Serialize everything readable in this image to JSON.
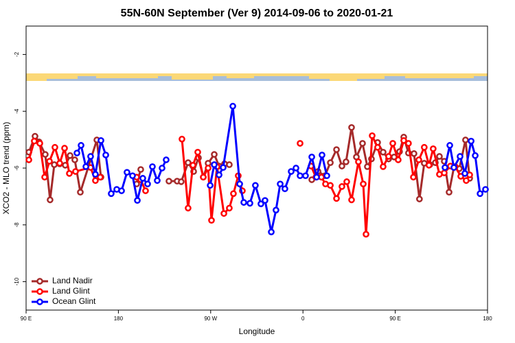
{
  "chart_data": {
    "type": "line",
    "title": "55N-60N September (Ver 9)   2014-09-06 to 2020-01-21",
    "xlabel": "Longitude",
    "ylabel": "XCO2 - MLO trend (ppm)",
    "xlim": [
      90,
      540
    ],
    "ylim": [
      -11,
      -1
    ],
    "xticks": [
      {
        "value": 90,
        "label": "90 E"
      },
      180,
      {
        "value": 270,
        "label": "90 W"
      },
      {
        "value": 360,
        "label": "0"
      },
      {
        "value": 450,
        "label": "90 E"
      },
      {
        "value": 540,
        "label": "180"
      }
    ],
    "yticks": [
      -2,
      -4,
      -6,
      -8,
      -10
    ],
    "legend": "bottom-left",
    "series": [
      {
        "name": "Land Nadir",
        "color": "#a52a2a",
        "x": [
          92.7,
          98.7,
          102.7,
          108.7,
          113.4,
          117.5,
          122.8,
          128.2,
          132.9,
          137.5,
          142.9,
          159.0,
          163.0,
          null,
          197.8,
          201.8,
          null,
          229.3,
          237.3,
          241.3,
          248.0,
          253.4,
          258.1,
          262.8,
          267.5,
          273.5,
          278.2,
          283.5,
          288.2,
          null,
          368.6,
          374.7,
          381.4,
          386.7,
          392.7,
          398.0,
          402.0,
          407.4,
          412.1,
          418.1,
          422.8,
          426.8,
          432.8,
          438.2,
          443.5,
          448.9,
          454.2,
          458.3,
          462.9,
          468.3,
          473.6,
          478.3,
          483.7,
          489.1,
          493.1,
          497.8,
          502.5,
          507.2,
          512.5,
          518.5,
          522.6
        ],
        "values": [
          -5.44,
          -4.88,
          -5.08,
          -5.52,
          -7.12,
          -5.88,
          -5.85,
          -5.9,
          -5.56,
          -5.71,
          -6.85,
          -5.01,
          -6.32,
          null,
          -6.56,
          -6.05,
          null,
          -6.46,
          -6.46,
          -6.48,
          -5.81,
          -6.12,
          -5.64,
          -6.32,
          -5.83,
          -5.52,
          -5.93,
          -5.85,
          -5.88,
          null,
          -6.41,
          -6.12,
          -6.27,
          -5.81,
          -5.35,
          -5.93,
          -5.78,
          -4.57,
          -5.61,
          -5.13,
          -5.95,
          -5.68,
          -5.1,
          -5.44,
          -5.68,
          -5.61,
          -5.42,
          -4.91,
          -5.47,
          -5.49,
          -7.09,
          -5.83,
          -5.88,
          -5.81,
          -5.59,
          -5.76,
          -6.85,
          -5.98,
          -6.02,
          -5.01,
          -6.36
        ]
      },
      {
        "name": "Land Glint",
        "color": "#ff0000",
        "x": [
          92.7,
          98.0,
          103.4,
          108.1,
          112.8,
          118.1,
          122.8,
          127.5,
          132.2,
          138.2,
          152.9,
          157.6,
          162.3,
          null,
          197.8,
          201.8,
          206.5,
          null,
          242.0,
          248.0,
          252.7,
          257.4,
          262.8,
          267.5,
          270.8,
          276.2,
          282.9,
          288.2,
          292.2,
          296.9,
          300.9,
          null,
          357.2,
          null,
          367.9,
          372.6,
          378.0,
          382.0,
          386.7,
          392.7,
          398.0,
          402.7,
          407.4,
          414.1,
          418.8,
          421.5,
          427.5,
          432.8,
          438.2,
          443.5,
          447.6,
          452.9,
          458.3,
          462.9,
          467.7,
          473.0,
          478.3,
          482.9,
          487.0,
          493.1,
          497.8,
          503.8,
          508.5,
          513.9,
          519.2,
          522.6
        ],
        "values": [
          -5.71,
          -5.05,
          -5.13,
          -6.32,
          -5.76,
          -5.27,
          -5.83,
          -5.3,
          -6.19,
          -6.12,
          -5.98,
          -6.44,
          -6.32,
          null,
          -6.32,
          -6.41,
          -6.8,
          null,
          -4.98,
          -7.41,
          -5.9,
          -5.44,
          -6.32,
          -6.0,
          -7.84,
          -5.95,
          -7.6,
          -7.41,
          -6.9,
          -6.27,
          -6.8,
          null,
          -5.13,
          null,
          -5.93,
          -6.32,
          -6.32,
          -6.56,
          -6.61,
          -7.07,
          -6.65,
          -6.48,
          -7.12,
          -5.78,
          -6.56,
          -8.33,
          -4.86,
          -5.27,
          -5.95,
          -5.59,
          -5.13,
          -5.71,
          -5.03,
          -5.13,
          -6.32,
          -5.71,
          -5.27,
          -5.9,
          -5.32,
          -6.22,
          -6.17,
          -5.93,
          -5.95,
          -6.29,
          -6.44,
          -6.24
        ]
      },
      {
        "name": "Ocean Glint",
        "color": "#0000ff",
        "x": [
          139.6,
          143.6,
          148.3,
          152.9,
          157.6,
          163.0,
          167.7,
          173.0,
          178.4,
          183.1,
          188.4,
          193.8,
          198.5,
          203.8,
          208.5,
          213.2,
          217.9,
          222.6,
          226.6,
          null,
          269.5,
          273.5,
          278.2,
          282.2,
          291.6,
          298.3,
          302.3,
          308.3,
          313.6,
          319.0,
          323.0,
          329.1,
          333.7,
          337.8,
          342.4,
          348.5,
          353.2,
          357.2,
          362.5,
          368.6,
          373.3,
          378.6,
          383.3,
          null,
          498.5,
          503.2,
          507.2,
          513.2,
          517.9,
          524.0,
          528.0,
          532.7,
          538.0
        ],
        "values": [
          -5.47,
          -5.2,
          -5.95,
          -5.59,
          -6.22,
          -5.03,
          -5.54,
          -6.9,
          -6.75,
          -6.8,
          -6.15,
          -6.27,
          -7.14,
          -6.36,
          -6.56,
          -5.95,
          -6.44,
          -6.0,
          -5.71,
          null,
          -6.61,
          -5.88,
          -6.24,
          -5.98,
          -3.82,
          -6.56,
          -7.21,
          -7.24,
          -6.61,
          -7.26,
          -7.14,
          -8.25,
          -7.48,
          -6.56,
          -6.73,
          -6.12,
          -6.0,
          -6.27,
          -6.27,
          -5.61,
          -6.32,
          -5.54,
          -6.27,
          null,
          -5.98,
          -5.2,
          -5.98,
          -5.59,
          -6.19,
          -5.05,
          -5.56,
          -6.9,
          -6.75
        ]
      }
    ]
  }
}
